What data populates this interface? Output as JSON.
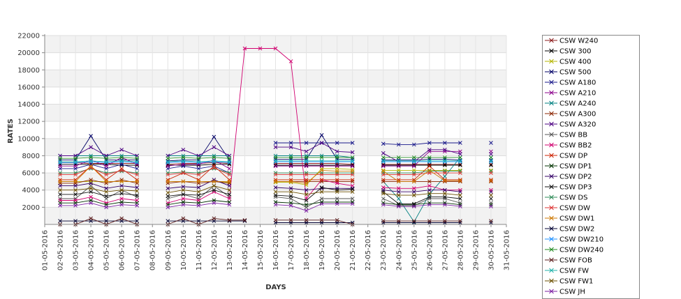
{
  "chart_data": {
    "type": "line",
    "title": "",
    "xlabel": "DAYS",
    "ylabel": "RATES",
    "ylim": [
      0,
      22000
    ],
    "yticks": [
      2000,
      4000,
      6000,
      8000,
      10000,
      12000,
      14000,
      16000,
      18000,
      20000,
      22000
    ],
    "categories": [
      "01-05-2016",
      "02-05-2016",
      "03-05-2016",
      "04-05-2016",
      "05-05-2016",
      "06-05-2016",
      "07-05-2016",
      "08-05-2016",
      "09-05-2016",
      "10-05-2016",
      "11-05-2016",
      "12-05-2016",
      "13-05-2016",
      "14-05-2016",
      "15-05-2016",
      "16-05-2016",
      "17-05-2016",
      "18-05-2016",
      "19-05-2016",
      "20-05-2016",
      "21-05-2016",
      "22-05-2016",
      "23-05-2016",
      "24-05-2016",
      "25-05-2016",
      "26-05-2016",
      "27-05-2016",
      "28-05-2016",
      "29-05-2016",
      "30-05-2016",
      "31-05-2016"
    ],
    "grid": true,
    "band_shading": true,
    "legend_position": "right",
    "series": [
      {
        "name": "CSW  W240",
        "color": "#8b1a1a",
        "values": [
          null,
          7200,
          7200,
          7100,
          7100,
          7100,
          7100,
          null,
          7000,
          7100,
          7100,
          7200,
          7100,
          null,
          null,
          7100,
          7100,
          7100,
          7100,
          7100,
          7000,
          null,
          7000,
          7000,
          7000,
          7000,
          7000,
          7000,
          null,
          7000,
          null
        ]
      },
      {
        "name": "CSW 300",
        "color": "#000000",
        "values": [
          null,
          7000,
          7000,
          7000,
          7000,
          6900,
          6900,
          null,
          6900,
          6900,
          6900,
          7000,
          7000,
          null,
          null,
          6900,
          6900,
          6900,
          6900,
          6900,
          6900,
          null,
          6900,
          6900,
          6900,
          6900,
          6900,
          6900,
          null,
          6900,
          null
        ]
      },
      {
        "name": "CSW 400",
        "color": "#b5b500",
        "values": [
          null,
          5000,
          5000,
          5000,
          5000,
          5000,
          5000,
          null,
          5000,
          5000,
          5000,
          5000,
          4900,
          null,
          null,
          4900,
          4900,
          4600,
          6500,
          6500,
          6400,
          null,
          6300,
          6300,
          6300,
          6300,
          6300,
          6300,
          null,
          6300,
          null
        ]
      },
      {
        "name": "CSW 500",
        "color": "#000066",
        "values": [
          null,
          7500,
          7500,
          10300,
          7500,
          7500,
          7500,
          null,
          7400,
          7500,
          7500,
          10200,
          7500,
          null,
          null,
          7600,
          7600,
          7600,
          10400,
          7600,
          7600,
          null,
          7500,
          7500,
          7500,
          7600,
          7600,
          7500,
          null,
          7500,
          null
        ]
      },
      {
        "name": "CSW A180",
        "color": "#1a1a8b",
        "values": [
          null,
          6500,
          6500,
          7000,
          6500,
          7000,
          6500,
          null,
          6500,
          6800,
          6500,
          6800,
          6000,
          null,
          null,
          9500,
          9500,
          9500,
          9500,
          9500,
          9500,
          null,
          9400,
          9300,
          9300,
          9500,
          9500,
          9500,
          null,
          9500,
          null
        ]
      },
      {
        "name": "CSW A210",
        "color": "#8b008b",
        "values": [
          null,
          6800,
          6800,
          7500,
          6800,
          7800,
          7000,
          null,
          6800,
          7000,
          7000,
          7500,
          6500,
          null,
          null,
          6800,
          6800,
          6800,
          6800,
          6800,
          6800,
          null,
          6800,
          6800,
          6800,
          8500,
          8500,
          8500,
          null,
          8500,
          null
        ]
      },
      {
        "name": "CSW A240",
        "color": "#008080",
        "values": [
          null,
          8000,
          8000,
          8000,
          8000,
          8000,
          8000,
          null,
          8000,
          8000,
          8000,
          8000,
          8000,
          null,
          null,
          8000,
          8000,
          8000,
          8000,
          8000,
          7800,
          null,
          5000,
          3000,
          300,
          3500,
          5600,
          7800,
          null,
          7800,
          null
        ]
      },
      {
        "name": "CSW A300",
        "color": "#8b2500",
        "values": [
          null,
          4800,
          4800,
          5200,
          4800,
          5200,
          4800,
          null,
          4800,
          5000,
          4800,
          5000,
          4800,
          null,
          null,
          5000,
          5000,
          5000,
          5000,
          5000,
          5000,
          null,
          5000,
          5000,
          5000,
          5000,
          5000,
          5000,
          null,
          5000,
          null
        ]
      },
      {
        "name": "CSW A320",
        "color": "#4b0082",
        "values": [
          null,
          8000,
          8000,
          9000,
          8000,
          8700,
          8000,
          null,
          8000,
          8700,
          8000,
          9000,
          8000,
          null,
          null,
          9000,
          9000,
          8500,
          9500,
          8500,
          8400,
          null,
          8300,
          7300,
          7300,
          8700,
          8700,
          8200,
          null,
          8200,
          null
        ]
      },
      {
        "name": "CSW BB",
        "color": "#555555",
        "values": [
          null,
          3000,
          3000,
          4500,
          3000,
          4000,
          3200,
          null,
          3000,
          3500,
          3000,
          4500,
          3200,
          null,
          null,
          3200,
          3000,
          2000,
          3000,
          3000,
          3000,
          null,
          3000,
          2200,
          2200,
          3000,
          3000,
          2500,
          null,
          2500,
          null
        ]
      },
      {
        "name": "CSW BB2",
        "color": "#d0006f",
        "values": [
          null,
          2800,
          2800,
          3200,
          2500,
          3000,
          2800,
          null,
          2500,
          3000,
          2800,
          3800,
          3000,
          20500,
          20500,
          20500,
          19000,
          3000,
          5200,
          4800,
          4500,
          null,
          4300,
          4200,
          4200,
          4500,
          4000,
          4000,
          null,
          4000,
          null
        ]
      },
      {
        "name": "CSW DP",
        "color": "#cc2200",
        "values": [
          null,
          5200,
          5200,
          6800,
          5200,
          6500,
          5200,
          null,
          5200,
          6000,
          5200,
          6800,
          5200,
          null,
          null,
          5200,
          5200,
          5200,
          5200,
          5200,
          5200,
          null,
          5200,
          5200,
          5200,
          6800,
          5200,
          5200,
          null,
          5200,
          null
        ]
      },
      {
        "name": "CSW DP1",
        "color": "#003300",
        "values": [
          null,
          2500,
          2500,
          2800,
          2300,
          2600,
          2500,
          null,
          2300,
          2600,
          2500,
          2800,
          2600,
          null,
          null,
          2600,
          2500,
          2300,
          2600,
          2600,
          2600,
          null,
          2500,
          2300,
          2300,
          2500,
          2500,
          2300,
          null,
          2300,
          null
        ]
      },
      {
        "name": "CSW DP2",
        "color": "#330066",
        "values": [
          null,
          4500,
          4500,
          4800,
          4200,
          4500,
          4300,
          null,
          4200,
          4400,
          4300,
          5200,
          4500,
          null,
          null,
          4300,
          4200,
          4000,
          4200,
          4200,
          4200,
          null,
          4000,
          3800,
          3800,
          4000,
          4000,
          3800,
          null,
          3800,
          null
        ]
      },
      {
        "name": "CSW DP3",
        "color": "#111111",
        "values": [
          null,
          3500,
          3500,
          3800,
          3300,
          3600,
          3400,
          null,
          3300,
          3500,
          3400,
          4000,
          3500,
          null,
          null,
          3400,
          3300,
          2800,
          4300,
          4000,
          4100,
          null,
          3800,
          2400,
          2400,
          3200,
          3200,
          3000,
          null,
          3000,
          null
        ]
      },
      {
        "name": "CSW DS",
        "color": "#2e8b57",
        "values": [
          null,
          6000,
          6000,
          6500,
          6000,
          6200,
          6000,
          null,
          6000,
          6100,
          6000,
          6500,
          6000,
          null,
          null,
          6000,
          6000,
          6000,
          6000,
          6000,
          6000,
          null,
          6000,
          6000,
          6000,
          6200,
          6200,
          6200,
          null,
          6200,
          null
        ]
      },
      {
        "name": "CSW DW",
        "color": "#dd3333",
        "values": [
          null,
          5800,
          5800,
          6600,
          5800,
          6300,
          5800,
          null,
          5800,
          6000,
          5800,
          6600,
          5800,
          null,
          null,
          5800,
          5800,
          5800,
          5800,
          5800,
          5800,
          null,
          5800,
          5800,
          5800,
          6000,
          6000,
          6000,
          null,
          6000,
          null
        ]
      },
      {
        "name": "CSW DW1",
        "color": "#cc7700",
        "values": [
          null,
          5000,
          5000,
          6800,
          5000,
          5000,
          5000,
          null,
          5000,
          5000,
          5000,
          5000,
          5000,
          null,
          null,
          5000,
          5000,
          4800,
          6300,
          6200,
          6200,
          null,
          6200,
          5000,
          5000,
          6300,
          5100,
          5100,
          null,
          5100,
          null
        ]
      },
      {
        "name": "CSW DW2",
        "color": "#000033",
        "values": [
          null,
          400,
          400,
          400,
          400,
          400,
          400,
          null,
          400,
          400,
          400,
          400,
          400,
          400,
          null,
          200,
          200,
          200,
          200,
          200,
          200,
          null,
          200,
          200,
          200,
          200,
          200,
          200,
          null,
          200,
          null
        ]
      },
      {
        "name": "CSW DW210",
        "color": "#1e90ff",
        "values": [
          null,
          7200,
          7200,
          7300,
          7200,
          7300,
          7200,
          null,
          7200,
          7300,
          7200,
          7300,
          7200,
          null,
          null,
          7300,
          7300,
          7300,
          7300,
          7300,
          7300,
          null,
          7300,
          7300,
          7300,
          7300,
          7300,
          7300,
          null,
          7300,
          null
        ]
      },
      {
        "name": "CSW DW240",
        "color": "#228b22",
        "values": [
          null,
          7700,
          7700,
          7800,
          7700,
          7800,
          7700,
          null,
          7700,
          7800,
          7700,
          7800,
          7700,
          null,
          null,
          7800,
          7800,
          7800,
          7800,
          7800,
          7800,
          null,
          7800,
          7800,
          7800,
          7800,
          7800,
          7800,
          null,
          7800,
          null
        ]
      },
      {
        "name": "CSW FOB",
        "color": "#5c1f1f",
        "values": [
          null,
          0,
          0,
          700,
          0,
          700,
          0,
          null,
          0,
          700,
          0,
          700,
          500,
          500,
          null,
          500,
          500,
          500,
          500,
          500,
          0,
          null,
          400,
          400,
          400,
          400,
          400,
          400,
          null,
          400,
          null
        ]
      },
      {
        "name": "CSW FW",
        "color": "#20b2aa",
        "values": [
          null,
          7300,
          7300,
          7400,
          7300,
          7400,
          7300,
          null,
          7300,
          7400,
          7300,
          7400,
          7300,
          null,
          null,
          7400,
          7400,
          7400,
          7400,
          7400,
          7400,
          null,
          7400,
          7400,
          7400,
          7400,
          7400,
          7400,
          null,
          7400,
          null
        ]
      },
      {
        "name": "CSW FW1",
        "color": "#6b4f00",
        "values": [
          null,
          4000,
          4000,
          4200,
          3800,
          4000,
          3900,
          null,
          3700,
          4000,
          3800,
          4500,
          4000,
          null,
          null,
          3800,
          3800,
          3500,
          3800,
          3800,
          3800,
          null,
          3600,
          3400,
          3400,
          3600,
          3600,
          3400,
          null,
          3400,
          null
        ]
      },
      {
        "name": "CSW JH",
        "color": "#7b1fa2",
        "values": [
          null,
          2200,
          2200,
          2500,
          2000,
          2300,
          2200,
          null,
          2000,
          2300,
          2200,
          2500,
          2300,
          null,
          null,
          2300,
          2200,
          1600,
          2400,
          2400,
          2400,
          null,
          2300,
          2100,
          2100,
          2300,
          2300,
          2100,
          null,
          2100,
          null
        ]
      }
    ]
  }
}
